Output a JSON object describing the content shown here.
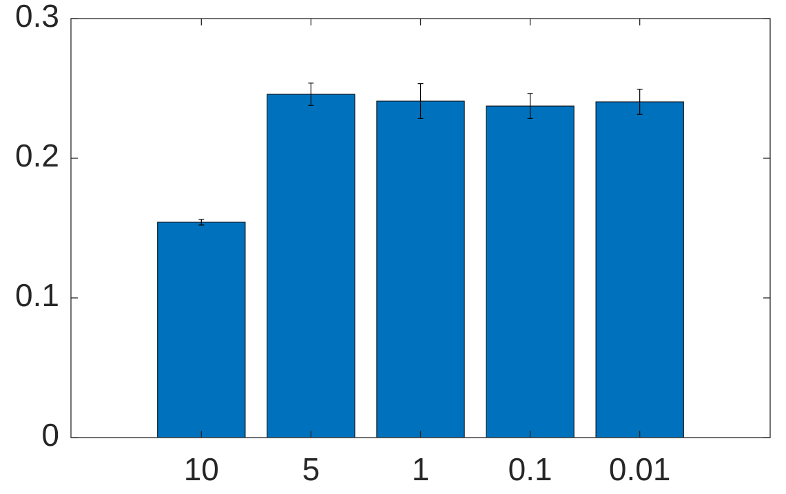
{
  "chart_data": {
    "type": "bar",
    "categories": [
      "10",
      "5",
      "1",
      "0.1",
      "0.01"
    ],
    "values": [
      0.1542,
      0.2458,
      0.2409,
      0.2374,
      0.2404
    ],
    "errors": [
      0.002,
      0.008,
      0.0125,
      0.009,
      0.009
    ],
    "color": "#0072bd",
    "ylim": [
      0,
      0.3
    ],
    "yticks": [
      0,
      0.1,
      0.2,
      0.3
    ]
  }
}
